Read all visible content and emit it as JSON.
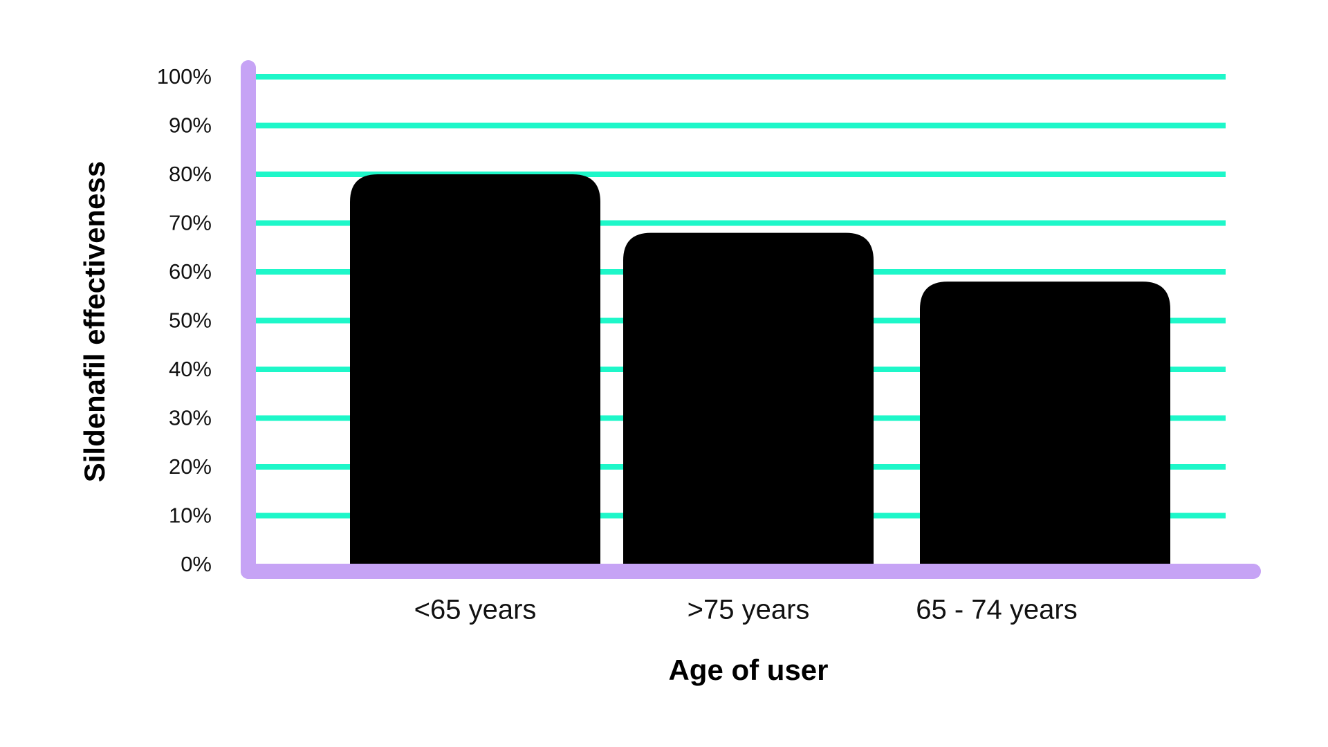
{
  "chart_data": {
    "type": "bar",
    "x_label": "Age of user",
    "y_label": "Sildenafil effectiveness",
    "categories": [
      "<65 years",
      ">75 years",
      "65 - 74 years"
    ],
    "values": [
      80,
      68,
      58
    ],
    "color": "#000000",
    "grid_color": "#1ef7c9",
    "axis_color": "#c6a3f5",
    "ylim": [
      0,
      100
    ],
    "yticks": [
      {
        "value": 0,
        "label": "0%"
      },
      {
        "value": 10,
        "label": "10%"
      },
      {
        "value": 20,
        "label": "20%"
      },
      {
        "value": 30,
        "label": "30%"
      },
      {
        "value": 40,
        "label": "40%"
      },
      {
        "value": 50,
        "label": "50%"
      },
      {
        "value": 60,
        "label": "60%"
      },
      {
        "value": 70,
        "label": "70%"
      },
      {
        "value": 80,
        "label": "80%"
      },
      {
        "value": 90,
        "label": "90%"
      },
      {
        "value": 100,
        "label": "100%"
      }
    ],
    "grid": true
  }
}
